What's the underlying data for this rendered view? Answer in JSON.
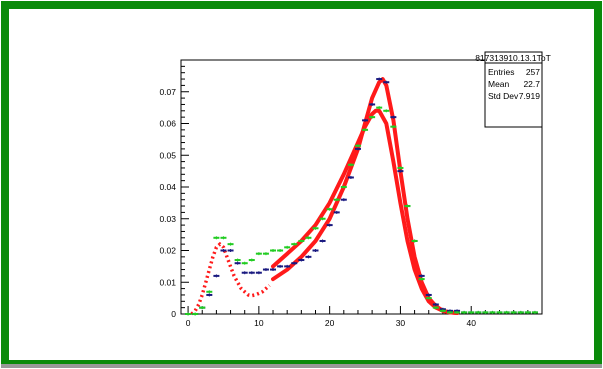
{
  "colors": {
    "frame": "#0a8a0a",
    "background": "#ffffff",
    "axis": "#000000",
    "series_navy": "#1a1a80",
    "series_green": "#22cc22",
    "fit": "#ff1a1a"
  },
  "stats_box": {
    "title": "817313910.13.1ToT",
    "rows": [
      {
        "label": "Entries",
        "value": "257"
      },
      {
        "label": "Mean",
        "value": "22.7"
      },
      {
        "label": "Std Dev",
        "value": "7.919"
      }
    ]
  },
  "chart_data": {
    "type": "scatter",
    "xlim": [
      -1,
      50
    ],
    "ylim": [
      0,
      0.08
    ],
    "xticks": [
      0,
      10,
      20,
      30,
      40
    ],
    "yticks": [
      0,
      0.01,
      0.02,
      0.03,
      0.04,
      0.05,
      0.06,
      0.07
    ],
    "ytick_labels": [
      "0",
      "0.01",
      "0.02",
      "0.03",
      "0.04",
      "0.05",
      "0.06",
      "0.07"
    ],
    "grid": false,
    "series": [
      {
        "color": "#1a1a80",
        "x": [
          0,
          1,
          2,
          3,
          4,
          5,
          6,
          7,
          8,
          9,
          10,
          11,
          12,
          13,
          14,
          15,
          16,
          17,
          18,
          19,
          20,
          21,
          22,
          23,
          24,
          25,
          26,
          27,
          28,
          29,
          30,
          31,
          32,
          33,
          34,
          35,
          36,
          37,
          38,
          39,
          40,
          41,
          42,
          43,
          44,
          45,
          46,
          47,
          48,
          49
        ],
        "y": [
          0,
          0,
          0.002,
          0.006,
          0.012,
          0.02,
          0.02,
          0.016,
          0.013,
          0.013,
          0.013,
          0.014,
          0.014,
          0.015,
          0.015,
          0.016,
          0.017,
          0.018,
          0.02,
          0.023,
          0.028,
          0.032,
          0.036,
          0.043,
          0.052,
          0.061,
          0.066,
          0.074,
          0.073,
          0.062,
          0.045,
          0.034,
          0.023,
          0.012,
          0.006,
          0.003,
          0.0015,
          0.001,
          0.001,
          0.0005,
          0.0005,
          0.0005,
          0.0005,
          0.0005,
          0.0005,
          0.0005,
          0.0005,
          0.0005,
          0.0005,
          0.0005
        ]
      },
      {
        "color": "#22cc22",
        "x": [
          0,
          1,
          2,
          3,
          4,
          5,
          6,
          7,
          8,
          9,
          10,
          11,
          12,
          13,
          14,
          15,
          16,
          17,
          18,
          19,
          20,
          21,
          22,
          23,
          24,
          25,
          26,
          27,
          28,
          29,
          30,
          31,
          32,
          33,
          34,
          35,
          36,
          37,
          38,
          39,
          40,
          41,
          42,
          43,
          44,
          45,
          46,
          47,
          48,
          49
        ],
        "y": [
          0,
          0,
          0.002,
          0.007,
          0.024,
          0.024,
          0.022,
          0.017,
          0.016,
          0.017,
          0.019,
          0.019,
          0.02,
          0.02,
          0.021,
          0.022,
          0.023,
          0.024,
          0.027,
          0.03,
          0.033,
          0.036,
          0.04,
          0.047,
          0.053,
          0.058,
          0.062,
          0.065,
          0.064,
          0.059,
          0.046,
          0.034,
          0.023,
          0.011,
          0.005,
          0.002,
          0.001,
          0.0005,
          0.0005,
          0.0005,
          0.0005,
          0.0005,
          0.0005,
          0.0005,
          0.0005,
          0.0005,
          0.0005,
          0.0005,
          0.0005,
          0.0005
        ]
      }
    ],
    "fits": [
      {
        "color": "#ff1a1a",
        "dotted_x": [
          0.5,
          1,
          1.5,
          2,
          2.5,
          3,
          3.5,
          4,
          4.5,
          5,
          5.5,
          6,
          6.5,
          7,
          7.5,
          8,
          8.5,
          9,
          9.5,
          10,
          10.5,
          11,
          11.5
        ],
        "dotted_y": [
          0,
          0.001,
          0.003,
          0.006,
          0.01,
          0.014,
          0.018,
          0.021,
          0.022,
          0.021,
          0.018,
          0.015,
          0.012,
          0.01,
          0.008,
          0.007,
          0.006,
          0.0058,
          0.006,
          0.0065,
          0.007,
          0.008,
          0.009
        ],
        "x": [
          12,
          14,
          16,
          18,
          20,
          22,
          24,
          25,
          26,
          27,
          27.5,
          28,
          29,
          30,
          31,
          32,
          33,
          34,
          35,
          36,
          37,
          38
        ],
        "y": [
          0.011,
          0.014,
          0.018,
          0.023,
          0.03,
          0.04,
          0.052,
          0.06,
          0.068,
          0.073,
          0.074,
          0.072,
          0.061,
          0.045,
          0.03,
          0.018,
          0.01,
          0.005,
          0.0025,
          0.001,
          0.0005,
          0.0003
        ]
      },
      {
        "color": "#ff1a1a",
        "x": [
          12,
          14,
          16,
          18,
          20,
          22,
          24,
          25,
          26,
          26.5,
          27,
          28,
          29,
          30,
          31,
          32,
          33,
          34,
          35,
          36,
          37,
          38
        ],
        "y": [
          0.015,
          0.019,
          0.023,
          0.028,
          0.035,
          0.044,
          0.054,
          0.059,
          0.063,
          0.064,
          0.064,
          0.06,
          0.048,
          0.035,
          0.023,
          0.014,
          0.008,
          0.004,
          0.002,
          0.001,
          0.0005,
          0.0003
        ]
      }
    ]
  }
}
